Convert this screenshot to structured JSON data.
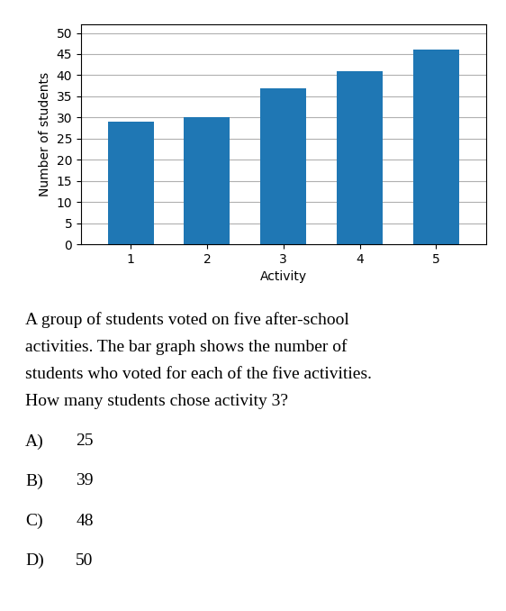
{
  "chart_data": {
    "type": "bar",
    "x": [
      1,
      2,
      3,
      4,
      5
    ],
    "values": [
      29,
      30,
      37,
      41,
      46
    ],
    "xlabel": "Activity",
    "ylabel": "Number of students",
    "xlim": [
      0.35,
      5.65
    ],
    "xticks": [
      1,
      2,
      3,
      4,
      5
    ],
    "ylim": [
      0,
      52
    ],
    "yticks": [
      0,
      5,
      10,
      15,
      20,
      25,
      30,
      35,
      40,
      45,
      50
    ],
    "grid": true,
    "annotations": [
      "A group of students voted on five after-school",
      "activities. The bar graph shows the number of",
      "students who voted for each of the five activities.",
      "How many students chose activity 3?"
    ],
    "choices": [
      {
        "label": "A)",
        "text": "25"
      },
      {
        "label": "B)",
        "text": "39"
      },
      {
        "label": "C)",
        "text": "48"
      },
      {
        "label": "D)",
        "text": "50"
      }
    ]
  }
}
